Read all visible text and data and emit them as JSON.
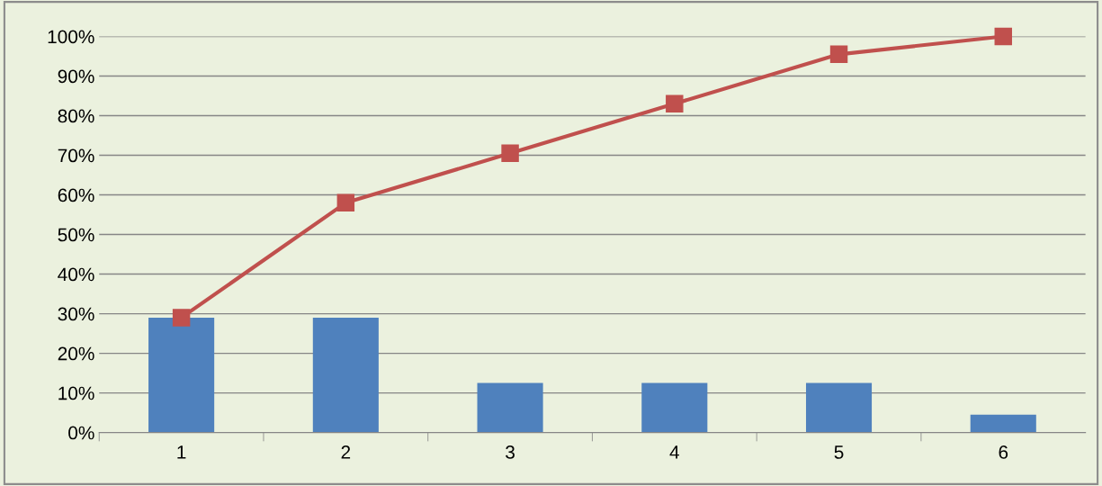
{
  "chart_data": {
    "type": "bar",
    "categories": [
      "1",
      "2",
      "3",
      "4",
      "5",
      "6"
    ],
    "series": [
      {
        "color": "#4f81bd",
        "values": [
          29,
          29,
          12.5,
          12.5,
          12.5,
          4.5
        ]
      },
      {
        "type": "line",
        "color": "#c0504d",
        "values": [
          29,
          58,
          70.5,
          83,
          95.5,
          100
        ],
        "marker": "square",
        "line_style": "solid"
      }
    ],
    "ylim": [
      0,
      100
    ],
    "yticks": [
      {
        "value": 0,
        "label": "0%"
      },
      {
        "value": 10,
        "label": "10%"
      },
      {
        "value": 20,
        "label": "20%"
      },
      {
        "value": 30,
        "label": "30%"
      },
      {
        "value": 40,
        "label": "40%"
      },
      {
        "value": 50,
        "label": "50%"
      },
      {
        "value": 60,
        "label": "60%"
      },
      {
        "value": 70,
        "label": "70%"
      },
      {
        "value": 80,
        "label": "80%"
      },
      {
        "value": 90,
        "label": "90%"
      },
      {
        "value": 100,
        "label": "100%"
      }
    ],
    "grid": "y",
    "legend": false
  }
}
